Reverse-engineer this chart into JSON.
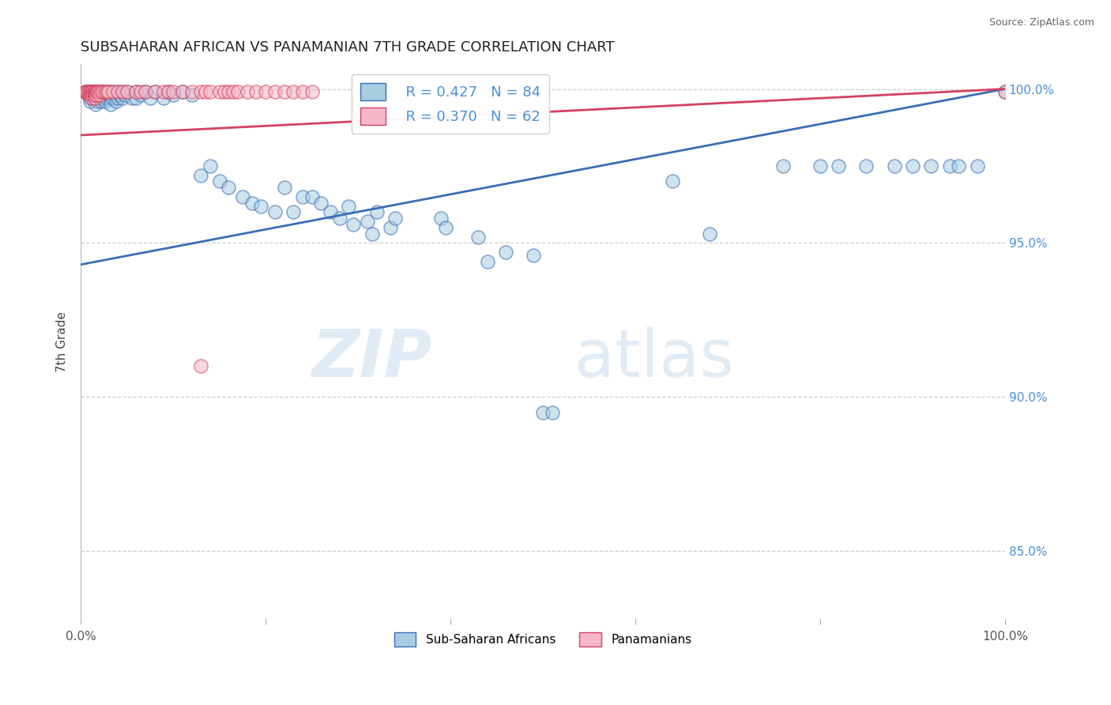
{
  "title": "SUBSAHARAN AFRICAN VS PANAMANIAN 7TH GRADE CORRELATION CHART",
  "source": "Source: ZipAtlas.com",
  "ylabel": "7th Grade",
  "ylabel_right_ticks": [
    "100.0%",
    "95.0%",
    "90.0%",
    "85.0%"
  ],
  "ylabel_right_vals": [
    1.0,
    0.95,
    0.9,
    0.85
  ],
  "xlim": [
    0.0,
    1.0
  ],
  "ylim": [
    0.828,
    1.008
  ],
  "blue_R": 0.427,
  "blue_N": 84,
  "pink_R": 0.37,
  "pink_N": 62,
  "blue_color": "#a8cce0",
  "pink_color": "#f5b8c8",
  "blue_line_color": "#3a6db5",
  "pink_line_color": "#d44060",
  "watermark_zip": "ZIP",
  "watermark_atlas": "atlas",
  "legend_text_color": "#4a90d9",
  "blue_line_y_start": 0.943,
  "blue_line_y_end": 1.0,
  "pink_line_y_start": 0.985,
  "pink_line_y_end": 1.0,
  "blue_scatter": [
    [
      0.005,
      0.999
    ],
    [
      0.008,
      0.998
    ],
    [
      0.01,
      0.997
    ],
    [
      0.01,
      0.996
    ],
    [
      0.012,
      0.999
    ],
    [
      0.012,
      0.998
    ],
    [
      0.012,
      0.997
    ],
    [
      0.014,
      0.999
    ],
    [
      0.014,
      0.998
    ],
    [
      0.016,
      0.999
    ],
    [
      0.016,
      0.997
    ],
    [
      0.016,
      0.995
    ],
    [
      0.018,
      0.998
    ],
    [
      0.018,
      0.996
    ],
    [
      0.02,
      0.999
    ],
    [
      0.02,
      0.998
    ],
    [
      0.02,
      0.997
    ],
    [
      0.022,
      0.999
    ],
    [
      0.022,
      0.998
    ],
    [
      0.022,
      0.996
    ],
    [
      0.024,
      0.999
    ],
    [
      0.024,
      0.997
    ],
    [
      0.026,
      0.998
    ],
    [
      0.026,
      0.996
    ],
    [
      0.028,
      0.999
    ],
    [
      0.028,
      0.997
    ],
    [
      0.03,
      0.998
    ],
    [
      0.032,
      0.999
    ],
    [
      0.032,
      0.997
    ],
    [
      0.032,
      0.995
    ],
    [
      0.035,
      0.999
    ],
    [
      0.035,
      0.997
    ],
    [
      0.038,
      0.998
    ],
    [
      0.038,
      0.996
    ],
    [
      0.04,
      0.999
    ],
    [
      0.04,
      0.997
    ],
    [
      0.042,
      0.998
    ],
    [
      0.045,
      0.999
    ],
    [
      0.045,
      0.997
    ],
    [
      0.048,
      0.998
    ],
    [
      0.05,
      0.999
    ],
    [
      0.055,
      0.997
    ],
    [
      0.06,
      0.999
    ],
    [
      0.06,
      0.997
    ],
    [
      0.065,
      0.998
    ],
    [
      0.07,
      0.999
    ],
    [
      0.075,
      0.997
    ],
    [
      0.08,
      0.999
    ],
    [
      0.09,
      0.997
    ],
    [
      0.095,
      0.999
    ],
    [
      0.1,
      0.998
    ],
    [
      0.11,
      0.999
    ],
    [
      0.12,
      0.998
    ],
    [
      0.13,
      0.972
    ],
    [
      0.14,
      0.975
    ],
    [
      0.15,
      0.97
    ],
    [
      0.16,
      0.968
    ],
    [
      0.175,
      0.965
    ],
    [
      0.185,
      0.963
    ],
    [
      0.195,
      0.962
    ],
    [
      0.21,
      0.96
    ],
    [
      0.22,
      0.968
    ],
    [
      0.23,
      0.96
    ],
    [
      0.24,
      0.965
    ],
    [
      0.25,
      0.965
    ],
    [
      0.26,
      0.963
    ],
    [
      0.27,
      0.96
    ],
    [
      0.28,
      0.958
    ],
    [
      0.29,
      0.962
    ],
    [
      0.295,
      0.956
    ],
    [
      0.31,
      0.957
    ],
    [
      0.315,
      0.953
    ],
    [
      0.32,
      0.96
    ],
    [
      0.335,
      0.955
    ],
    [
      0.34,
      0.958
    ],
    [
      0.39,
      0.958
    ],
    [
      0.395,
      0.955
    ],
    [
      0.43,
      0.952
    ],
    [
      0.44,
      0.944
    ],
    [
      0.46,
      0.947
    ],
    [
      0.49,
      0.946
    ],
    [
      0.5,
      0.895
    ],
    [
      0.51,
      0.895
    ],
    [
      0.64,
      0.97
    ],
    [
      0.68,
      0.953
    ],
    [
      0.76,
      0.975
    ],
    [
      0.8,
      0.975
    ],
    [
      0.82,
      0.975
    ],
    [
      0.85,
      0.975
    ],
    [
      0.88,
      0.975
    ],
    [
      0.9,
      0.975
    ],
    [
      0.92,
      0.975
    ],
    [
      0.94,
      0.975
    ],
    [
      0.95,
      0.975
    ],
    [
      0.97,
      0.975
    ],
    [
      1.0,
      0.999
    ]
  ],
  "pink_scatter": [
    [
      0.005,
      0.999
    ],
    [
      0.006,
      0.999
    ],
    [
      0.007,
      0.999
    ],
    [
      0.008,
      0.999
    ],
    [
      0.009,
      0.999
    ],
    [
      0.01,
      0.999
    ],
    [
      0.01,
      0.998
    ],
    [
      0.011,
      0.999
    ],
    [
      0.011,
      0.998
    ],
    [
      0.012,
      0.999
    ],
    [
      0.012,
      0.998
    ],
    [
      0.012,
      0.997
    ],
    [
      0.013,
      0.999
    ],
    [
      0.013,
      0.998
    ],
    [
      0.014,
      0.999
    ],
    [
      0.014,
      0.998
    ],
    [
      0.015,
      0.999
    ],
    [
      0.015,
      0.998
    ],
    [
      0.015,
      0.997
    ],
    [
      0.016,
      0.999
    ],
    [
      0.016,
      0.998
    ],
    [
      0.017,
      0.999
    ],
    [
      0.017,
      0.998
    ],
    [
      0.018,
      0.999
    ],
    [
      0.019,
      0.999
    ],
    [
      0.02,
      0.999
    ],
    [
      0.02,
      0.998
    ],
    [
      0.022,
      0.999
    ],
    [
      0.024,
      0.999
    ],
    [
      0.026,
      0.999
    ],
    [
      0.028,
      0.999
    ],
    [
      0.03,
      0.999
    ],
    [
      0.035,
      0.999
    ],
    [
      0.04,
      0.999
    ],
    [
      0.045,
      0.999
    ],
    [
      0.05,
      0.999
    ],
    [
      0.06,
      0.999
    ],
    [
      0.065,
      0.999
    ],
    [
      0.07,
      0.999
    ],
    [
      0.08,
      0.999
    ],
    [
      0.09,
      0.999
    ],
    [
      0.095,
      0.999
    ],
    [
      0.1,
      0.999
    ],
    [
      0.11,
      0.999
    ],
    [
      0.12,
      0.999
    ],
    [
      0.13,
      0.999
    ],
    [
      0.135,
      0.999
    ],
    [
      0.14,
      0.999
    ],
    [
      0.15,
      0.999
    ],
    [
      0.155,
      0.999
    ],
    [
      0.16,
      0.999
    ],
    [
      0.165,
      0.999
    ],
    [
      0.17,
      0.999
    ],
    [
      0.18,
      0.999
    ],
    [
      0.19,
      0.999
    ],
    [
      0.2,
      0.999
    ],
    [
      0.21,
      0.999
    ],
    [
      0.22,
      0.999
    ],
    [
      0.23,
      0.999
    ],
    [
      0.24,
      0.999
    ],
    [
      0.25,
      0.999
    ],
    [
      0.13,
      0.91
    ],
    [
      1.0,
      0.999
    ]
  ]
}
